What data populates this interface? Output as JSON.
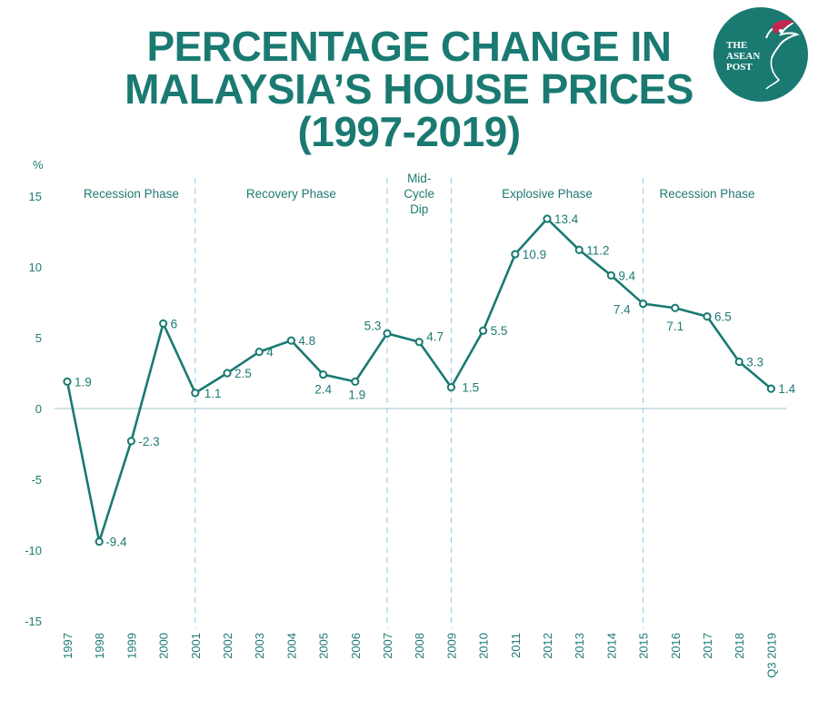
{
  "title_lines": [
    "PERCENTAGE CHANGE IN",
    "MALAYSIA’S HOUSE PRICES",
    "(1997-2019)"
  ],
  "logo": {
    "lines": [
      "THE",
      "ASEAN",
      "POST"
    ]
  },
  "colors": {
    "line": "#1a7a72",
    "text": "#1f7a73",
    "phase_divider": "#8ec9e6",
    "zero_line": "#9fc9c4"
  },
  "chart_data": {
    "type": "line",
    "title": "PERCENTAGE CHANGE IN MALAYSIA’S HOUSE PRICES (1997-2019)",
    "ylabel": "%",
    "xlabel": "",
    "ylim": [
      -15,
      15
    ],
    "yticks": [
      15,
      10,
      5,
      0,
      -5,
      -10,
      -15
    ],
    "categories": [
      "1997",
      "1998",
      "1999",
      "2000",
      "2001",
      "2002",
      "2003",
      "2004",
      "2005",
      "2006",
      "2007",
      "2008",
      "2009",
      "2010",
      "2011",
      "2012",
      "2013",
      "2014",
      "2015",
      "2016",
      "2017",
      "2018",
      "Q3 2019"
    ],
    "values": [
      1.9,
      -9.4,
      -2.3,
      6,
      1.1,
      2.5,
      4,
      4.8,
      2.4,
      1.9,
      5.3,
      4.7,
      1.5,
      5.5,
      10.9,
      13.4,
      11.2,
      9.4,
      7.4,
      7.1,
      6.5,
      3.3,
      1.4
    ],
    "labels": [
      "1.9",
      "-9.4",
      "-2.3",
      "6",
      "1.1",
      "2.5",
      "4",
      "4.8",
      "2.4",
      "1.9",
      "5.3",
      "4.7",
      "1.5",
      "5.5",
      "10.9",
      "13.4",
      "11.2",
      "9.4",
      "7.4",
      "7.1",
      "6.5",
      "3.3",
      "1.4"
    ],
    "phases": [
      {
        "name": "Recession Phase",
        "lines": [
          "Recession Phase"
        ],
        "start": 0,
        "end": 4
      },
      {
        "name": "Recovery Phase",
        "lines": [
          "Recovery Phase"
        ],
        "start": 4,
        "end": 10
      },
      {
        "name": "Mid-Cycle Dip",
        "lines": [
          "Mid-",
          "Cycle",
          "Dip"
        ],
        "start": 10,
        "end": 12
      },
      {
        "name": "Explosive Phase",
        "lines": [
          "Explosive Phase"
        ],
        "start": 12,
        "end": 18
      },
      {
        "name": "Recession Phase",
        "lines": [
          "Recession Phase"
        ],
        "start": 18,
        "end": 22
      }
    ]
  }
}
